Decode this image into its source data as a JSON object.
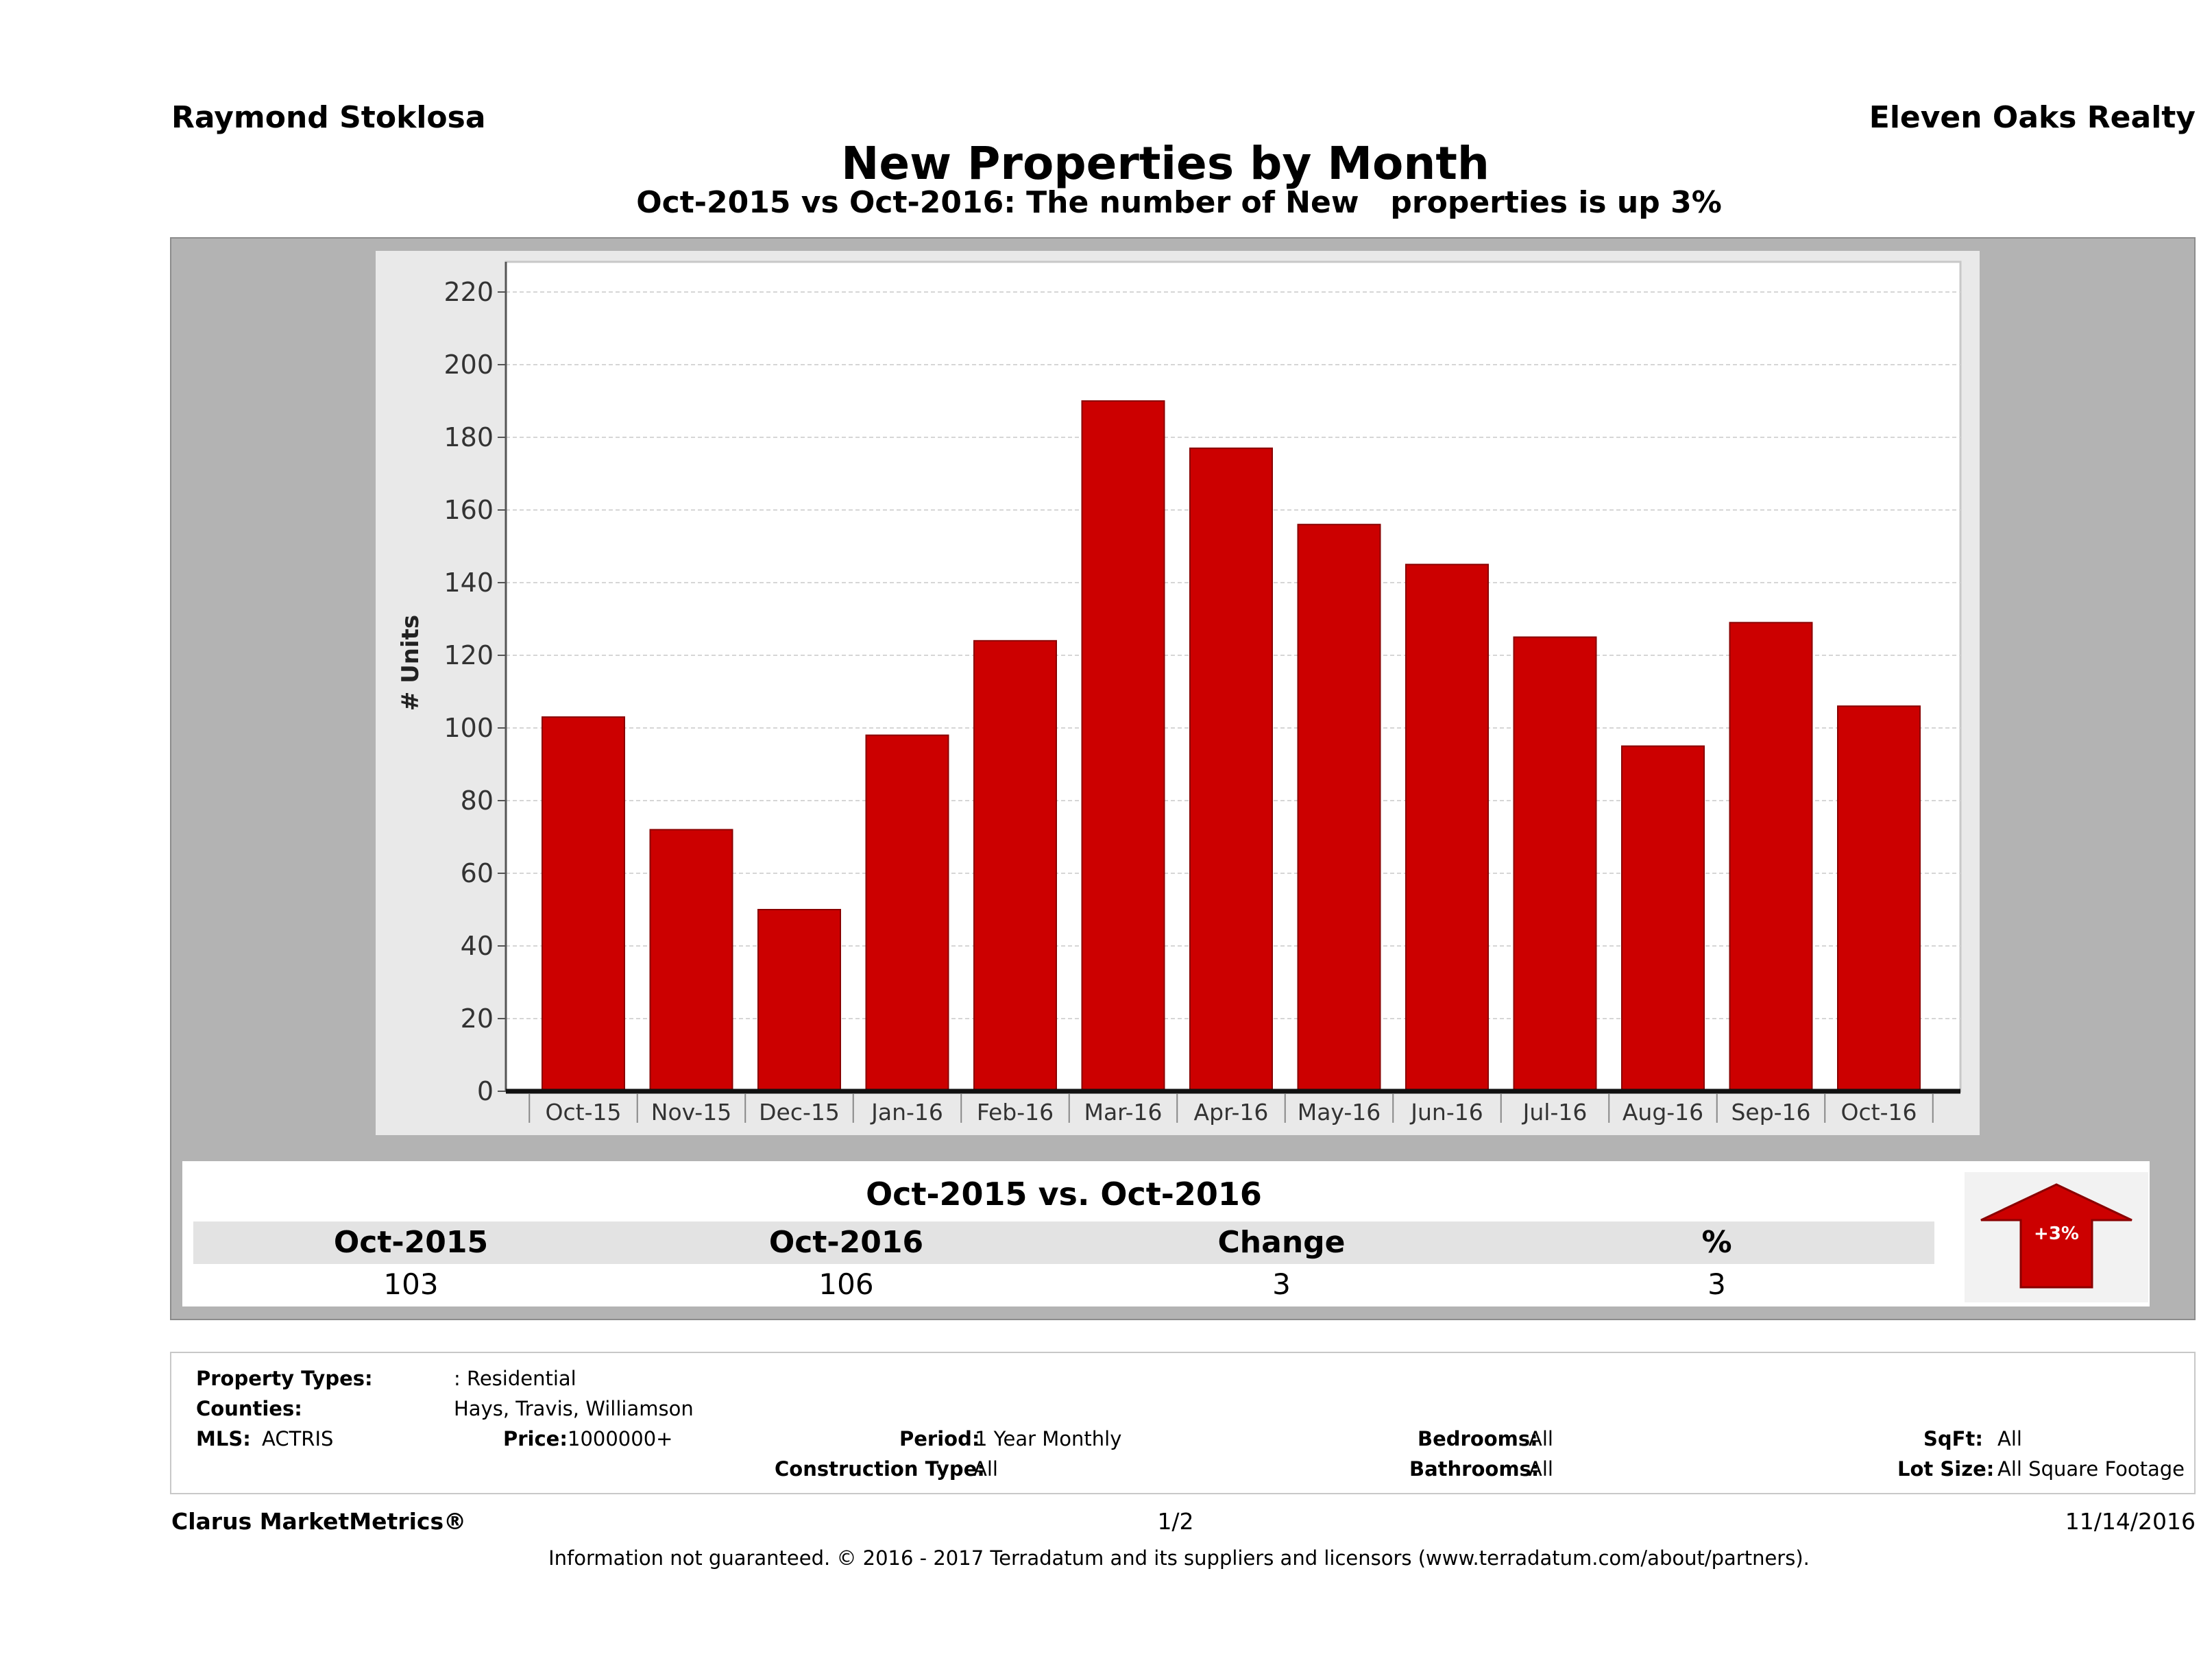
{
  "header": {
    "agent": "Raymond Stoklosa",
    "company": "Eleven Oaks Realty",
    "title": "New Properties by Month",
    "subtitle": "Oct-2015 vs Oct-2016: The number of New   properties is up 3%"
  },
  "chart_data": {
    "type": "bar",
    "categories": [
      "Oct-15",
      "Nov-15",
      "Dec-15",
      "Jan-16",
      "Feb-16",
      "Mar-16",
      "Apr-16",
      "May-16",
      "Jun-16",
      "Jul-16",
      "Aug-16",
      "Sep-16",
      "Oct-16"
    ],
    "values": [
      103,
      72,
      50,
      98,
      124,
      190,
      177,
      156,
      145,
      125,
      95,
      129,
      106
    ],
    "ylabel": "# Units",
    "xlabel": "",
    "ylim": [
      0,
      220
    ],
    "yticks": [
      0,
      20,
      40,
      60,
      80,
      100,
      120,
      140,
      160,
      180,
      200,
      220
    ],
    "grid": true,
    "bar_color": "#cc0000"
  },
  "summary": {
    "heading": "Oct-2015 vs. Oct-2016",
    "columns": [
      "Oct-2015",
      "Oct-2016",
      "Change",
      "%"
    ],
    "values": [
      "103",
      "106",
      "3",
      "3"
    ],
    "badge": "+3%",
    "badge_color": "#cc0000"
  },
  "info": {
    "property_types_label": "Property Types:",
    "property_types": ": Residential",
    "counties_label": "Counties:",
    "counties": "Hays, Travis, Williamson",
    "mls_label": "MLS:",
    "mls": "ACTRIS",
    "price_label": "Price:",
    "price": "1000000+",
    "period_label": "Period:",
    "period": "1 Year Monthly",
    "construction_label": "Construction Type:",
    "construction": "All",
    "bedrooms_label": "Bedrooms:",
    "bedrooms": "All",
    "bathrooms_label": "Bathrooms:",
    "bathrooms": "All",
    "sqft_label": "SqFt:",
    "sqft": "All",
    "lot_label": "Lot Size:",
    "lot": "All Square Footage"
  },
  "footer": {
    "brand": "Clarus MarketMetrics®",
    "page": "1/2",
    "date": "11/14/2016",
    "disclaimer": "Information not guaranteed. © 2016 - 2017 Terradatum and its suppliers and licensors (www.terradatum.com/about/partners)."
  }
}
